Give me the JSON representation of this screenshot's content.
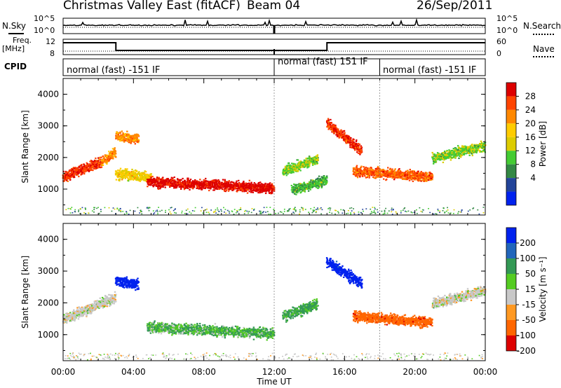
{
  "header": {
    "title": "Christmas Valley East (fitACF)",
    "beam": "Beam 04",
    "date": "26/Sep/2011"
  },
  "status_panel": {
    "left_label": "N.Sky",
    "right_label": "N.Search",
    "ticks": [
      "10^5",
      "10^0"
    ]
  },
  "freq_panel": {
    "left_label_line1": "Freq.",
    "left_label_line2": "[MHz]",
    "right_label": "Nave",
    "left_ticks": [
      "12",
      "8"
    ],
    "right_ticks": [
      "60",
      "0"
    ]
  },
  "cpid": {
    "label": "CPID",
    "segments": [
      "normal (fast) -151 IF",
      "normal (fast) 151 IF",
      "normal (fast) -151 IF"
    ]
  },
  "chart_data": [
    {
      "type": "heatmap",
      "title": "Power",
      "xlabel": "",
      "ylabel": "Slant Range [km]",
      "xlim": [
        0,
        24
      ],
      "ylim": [
        180,
        4500
      ],
      "yticks": [
        "1000",
        "2000",
        "3000",
        "4000"
      ],
      "colorbar_label": "Power [dB]",
      "colorbar_ticks": [
        "28",
        "24",
        "20",
        "16",
        "12",
        "8",
        "4"
      ],
      "colors": [
        "#dd0000",
        "#ff4400",
        "#ff8800",
        "#ffcc00",
        "#ddcc00",
        "#44cc33",
        "#338844",
        "#224499",
        "#0022ee"
      ],
      "features": [
        {
          "t0": 0.0,
          "t1": 2.2,
          "r_start": 1400,
          "r_end": 1900,
          "power_db": 26
        },
        {
          "t0": 2.2,
          "t1": 3.0,
          "r_start": 1900,
          "r_end": 2200,
          "power_db": 22
        },
        {
          "t0": 3.0,
          "t1": 5.0,
          "r_start": 1500,
          "r_end": 1400,
          "power_db": 18
        },
        {
          "t0": 4.8,
          "t1": 12.0,
          "r_start": 1250,
          "r_end": 1050,
          "power_db": 28
        },
        {
          "t0": 3.0,
          "t1": 4.3,
          "r_start": 2700,
          "r_end": 2600,
          "power_db": 22
        },
        {
          "t0": 12.5,
          "t1": 14.5,
          "r_start": 1600,
          "r_end": 2000,
          "power_db": 14
        },
        {
          "t0": 13.0,
          "t1": 15.0,
          "r_start": 1000,
          "r_end": 1300,
          "power_db": 12
        },
        {
          "t0": 15.0,
          "t1": 17.0,
          "r_start": 3100,
          "r_end": 2200,
          "power_db": 26
        },
        {
          "t0": 16.5,
          "t1": 21.0,
          "r_start": 1600,
          "r_end": 1400,
          "power_db": 24
        },
        {
          "t0": 21.0,
          "t1": 24.0,
          "r_start": 2000,
          "r_end": 2400,
          "power_db": 14
        }
      ]
    },
    {
      "type": "heatmap",
      "title": "Velocity",
      "xlabel": "Time UT",
      "ylabel": "Slant Range [km]",
      "xlim": [
        0,
        24
      ],
      "ylim": [
        180,
        4500
      ],
      "xticks": [
        "00:00",
        "04:00",
        "08:00",
        "12:00",
        "16:00",
        "20:00",
        "00:00"
      ],
      "yticks": [
        "1000",
        "2000",
        "3000",
        "4000"
      ],
      "colorbar_label": "Velocity [m s⁻¹]",
      "colorbar_ticks": [
        "200",
        "100",
        "50",
        "15",
        "-15",
        "-50",
        "-100",
        "-200"
      ],
      "colors": [
        "#0022ee",
        "#2266bb",
        "#339955",
        "#55cc22",
        "#c8c8c8",
        "#ff9922",
        "#ff6600",
        "#dd0000"
      ],
      "features": [
        {
          "t0": 0.0,
          "t1": 3.0,
          "r_start": 1500,
          "r_end": 2200,
          "velocity": 0
        },
        {
          "t0": 3.0,
          "t1": 4.3,
          "r_start": 2700,
          "r_end": 2600,
          "velocity": 180
        },
        {
          "t0": 4.8,
          "t1": 12.0,
          "r_start": 1250,
          "r_end": 1050,
          "velocity": 30
        },
        {
          "t0": 12.5,
          "t1": 14.5,
          "r_start": 1600,
          "r_end": 2000,
          "velocity": 40
        },
        {
          "t0": 15.0,
          "t1": 17.0,
          "r_start": 3300,
          "r_end": 2600,
          "velocity": 180
        },
        {
          "t0": 16.5,
          "t1": 21.0,
          "r_start": 1600,
          "r_end": 1400,
          "velocity": -80
        },
        {
          "t0": 21.0,
          "t1": 24.0,
          "r_start": 2000,
          "r_end": 2400,
          "velocity": 0
        }
      ]
    }
  ]
}
